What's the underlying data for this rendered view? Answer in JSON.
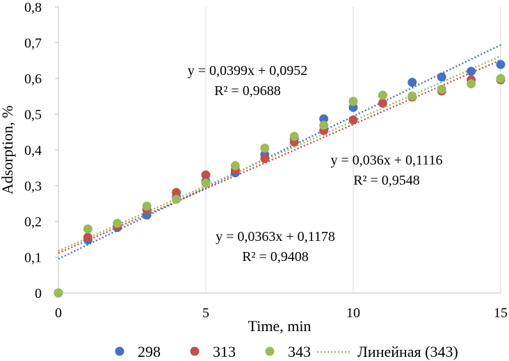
{
  "chart_data": {
    "type": "scatter",
    "title": "",
    "xlabel": "Time, min",
    "ylabel": "Adsorption, %",
    "xlim": [
      0,
      15
    ],
    "ylim": [
      0,
      0.8
    ],
    "x_ticks": [
      0,
      5,
      10,
      15
    ],
    "x_tick_labels": [
      "0",
      "5",
      "10",
      "15"
    ],
    "y_ticks": [
      0,
      0.1,
      0.2,
      0.3,
      0.4,
      0.5,
      0.6,
      0.7,
      0.8
    ],
    "y_tick_labels": [
      "0",
      "0,1",
      "0,2",
      "0,3",
      "0,4",
      "0,5",
      "0,6",
      "0,7",
      "0,8"
    ],
    "grid": "vertical",
    "legend_position": "bottom",
    "series": [
      {
        "name": "298",
        "color": "#4472C4",
        "x": [
          0,
          1,
          2,
          3,
          4,
          5,
          6,
          7,
          8,
          9,
          10,
          11,
          12,
          13,
          14,
          15
        ],
        "y": [
          0,
          0.148,
          0.183,
          0.218,
          0.268,
          0.312,
          0.336,
          0.387,
          0.432,
          0.487,
          0.519,
          0.553,
          0.589,
          0.604,
          0.62,
          0.639
        ]
      },
      {
        "name": "313",
        "color": "#C0504D",
        "x": [
          0,
          1,
          2,
          3,
          4,
          5,
          6,
          7,
          8,
          9,
          10,
          11,
          12,
          13,
          14,
          15
        ],
        "y": [
          0,
          0.156,
          0.188,
          0.233,
          0.281,
          0.33,
          0.344,
          0.376,
          0.422,
          0.454,
          0.484,
          0.531,
          0.548,
          0.565,
          0.596,
          0.596
        ]
      },
      {
        "name": "343",
        "color": "#9BBB59",
        "x": [
          0,
          1,
          2,
          3,
          4,
          5,
          6,
          7,
          8,
          9,
          10,
          11,
          12,
          13,
          14,
          15
        ],
        "y": [
          0,
          0.179,
          0.195,
          0.243,
          0.262,
          0.307,
          0.356,
          0.405,
          0.438,
          0.469,
          0.536,
          0.553,
          0.551,
          0.57,
          0.585,
          0.6
        ]
      }
    ],
    "trendlines": [
      {
        "series": "298",
        "color": "#4472C4",
        "slope": 0.0399,
        "intercept": 0.0952,
        "equation": "y = 0,0399x + 0,0952",
        "r2": "R² = 0,9688"
      },
      {
        "series": "313",
        "color": "#C0504D",
        "slope": 0.036,
        "intercept": 0.1116,
        "equation": "y = 0,036x + 0,1116",
        "r2": "R² = 0,9548"
      },
      {
        "series": "343",
        "color": "#9BBB59",
        "slope": 0.0363,
        "intercept": 0.1178,
        "equation": "y = 0,0363x + 0,1178",
        "r2": "R² = 0,9408"
      }
    ],
    "legend": [
      {
        "label": "298",
        "kind": "marker",
        "color": "#4472C4"
      },
      {
        "label": "313",
        "kind": "marker",
        "color": "#C0504D"
      },
      {
        "label": "343",
        "kind": "marker",
        "color": "#9BBB59"
      },
      {
        "label": "Линейная (343)",
        "kind": "line",
        "color": "#9BBB59"
      }
    ]
  }
}
